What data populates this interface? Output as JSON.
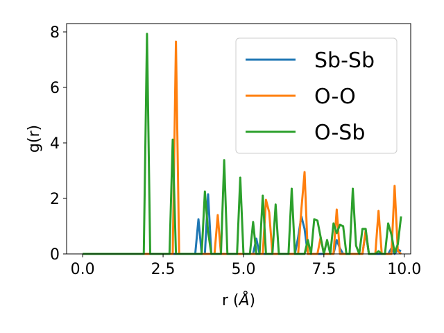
{
  "chart_data": {
    "type": "line",
    "title": "",
    "xlabel": "r (",
    "xlabel_unit": "Å",
    "xlabel_close": ")",
    "ylabel": "g(r)",
    "xlim": [
      -0.5,
      10.2
    ],
    "ylim": [
      0,
      8.3
    ],
    "xticks": [
      0.0,
      2.5,
      5.0,
      7.5,
      10.0
    ],
    "xtick_labels": [
      "0.0",
      "2.5",
      "5.0",
      "7.5",
      "10.0"
    ],
    "yticks": [
      0,
      2,
      4,
      6,
      8
    ],
    "ytick_labels": [
      "0",
      "2",
      "4",
      "6",
      "8"
    ],
    "grid": false,
    "legend_position": "top-right",
    "series": [
      {
        "name": "Sb-Sb",
        "color": "#1f77b4",
        "x": [
          0,
          3.5,
          3.6,
          3.7,
          3.8,
          3.9,
          4.0,
          5.3,
          5.4,
          5.5,
          6.6,
          6.7,
          6.8,
          6.9,
          7.0,
          7.8,
          7.9,
          8.0,
          8.1,
          8.7,
          8.8,
          8.9,
          9.5,
          9.6,
          9.7,
          9.8,
          9.9
        ],
        "values": [
          0,
          0,
          1.25,
          0,
          0,
          2.15,
          0,
          0,
          0.55,
          0,
          0,
          0.6,
          1.35,
          0.9,
          0,
          0,
          0.5,
          0.2,
          0,
          0,
          0.8,
          0,
          0,
          0.2,
          0,
          0.15,
          0.1
        ]
      },
      {
        "name": "O-O",
        "color": "#ff7f0e",
        "x": [
          0,
          2.8,
          2.9,
          3.0,
          4.1,
          4.2,
          4.3,
          5.6,
          5.7,
          5.8,
          5.9,
          6.7,
          6.8,
          6.9,
          7.0,
          7.3,
          7.4,
          7.5,
          7.8,
          7.9,
          8.0,
          8.7,
          8.8,
          8.9,
          9.1,
          9.2,
          9.3,
          9.6,
          9.7,
          9.8,
          9.9
        ],
        "values": [
          0,
          0,
          7.65,
          0,
          0,
          1.4,
          0,
          0,
          1.95,
          1.5,
          0,
          0,
          1.6,
          2.95,
          0,
          0,
          0.6,
          0,
          0,
          1.6,
          0,
          0,
          0.85,
          0,
          0,
          1.55,
          0,
          0,
          2.45,
          0.1,
          0
        ]
      },
      {
        "name": "O-Sb",
        "color": "#2ca02c",
        "x": [
          0,
          1.9,
          2.0,
          2.1,
          2.7,
          2.8,
          2.9,
          3.7,
          3.8,
          3.9,
          4.0,
          4.3,
          4.4,
          4.5,
          4.8,
          4.9,
          5.0,
          5.2,
          5.3,
          5.4,
          5.5,
          5.6,
          5.7,
          5.9,
          6.0,
          6.1,
          6.4,
          6.5,
          6.6,
          6.9,
          7.0,
          7.1,
          7.2,
          7.3,
          7.5,
          7.6,
          7.7,
          7.8,
          7.9,
          8.0,
          8.1,
          8.2,
          8.3,
          8.4,
          8.5,
          8.6,
          8.7,
          8.8,
          8.9,
          9.0,
          9.1,
          9.2,
          9.3,
          9.4,
          9.5,
          9.6,
          9.7,
          9.8,
          9.9
        ],
        "values": [
          0,
          0,
          7.93,
          0,
          0,
          4.12,
          0,
          0,
          2.25,
          0.8,
          0,
          0,
          3.38,
          0,
          0,
          2.75,
          0,
          0,
          1.15,
          0,
          0,
          2.1,
          0,
          0,
          1.78,
          0,
          0,
          2.35,
          0,
          0,
          0.5,
          0,
          1.25,
          1.2,
          0,
          0.5,
          0,
          1.1,
          0.75,
          1.05,
          1.0,
          0,
          0,
          2.35,
          0.3,
          0,
          0.9,
          0.9,
          0,
          0,
          0,
          0.1,
          0,
          0,
          1.1,
          0.7,
          0.05,
          0.35,
          1.35
        ]
      }
    ]
  }
}
